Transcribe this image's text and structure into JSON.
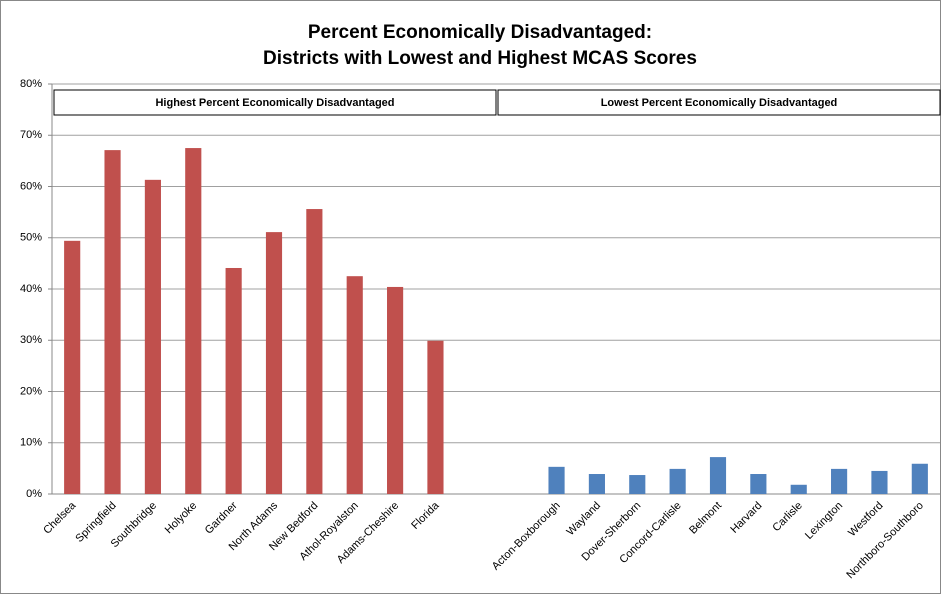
{
  "chart_data": {
    "type": "bar",
    "title": "Percent Economically Disadvantaged:",
    "subtitle": "Districts with Lowest and Highest MCAS Scores",
    "categories": [
      "Chelsea",
      "Springfield",
      "Southbridge",
      "Holyoke",
      "Gardner",
      "North Adams",
      "New Bedford",
      "Athol-Royalston",
      "Adams-Cheshire",
      "Florida",
      null,
      null,
      "Acton-Boxborough",
      "Wayland",
      "Dover-Sherborn",
      "Concord-Carlisle",
      "Belmont",
      "Harvard",
      "Carlisle",
      "Lexington",
      "Westford",
      "Northboro-Southboro"
    ],
    "series": [
      {
        "color": "#c0504d",
        "values": [
          49.4,
          67.1,
          61.3,
          67.5,
          44.1,
          51.1,
          55.6,
          42.5,
          40.4,
          29.9,
          null,
          null,
          null,
          null,
          null,
          null,
          null,
          null,
          null,
          null,
          null,
          null
        ]
      },
      {
        "color": "#4f81bd",
        "values": [
          null,
          null,
          null,
          null,
          null,
          null,
          null,
          null,
          null,
          null,
          null,
          null,
          5.3,
          3.9,
          3.7,
          4.9,
          7.2,
          3.9,
          1.8,
          4.9,
          4.5,
          5.9
        ]
      }
    ],
    "sections": [
      "Highest Percent Economically Disadvantaged",
      "Lowest Percent Economically Disadvantaged"
    ],
    "ylim": [
      0,
      80
    ],
    "yticks": [
      {
        "value": 0,
        "label": "0%"
      },
      {
        "value": 10,
        "label": "10%"
      },
      {
        "value": 20,
        "label": "20%"
      },
      {
        "value": 30,
        "label": "30%"
      },
      {
        "value": 40,
        "label": "40%"
      },
      {
        "value": 50,
        "label": "50%"
      },
      {
        "value": 60,
        "label": "60%"
      },
      {
        "value": 70,
        "label": "70%"
      },
      {
        "value": 80,
        "label": "80%"
      }
    ],
    "grid": true
  }
}
